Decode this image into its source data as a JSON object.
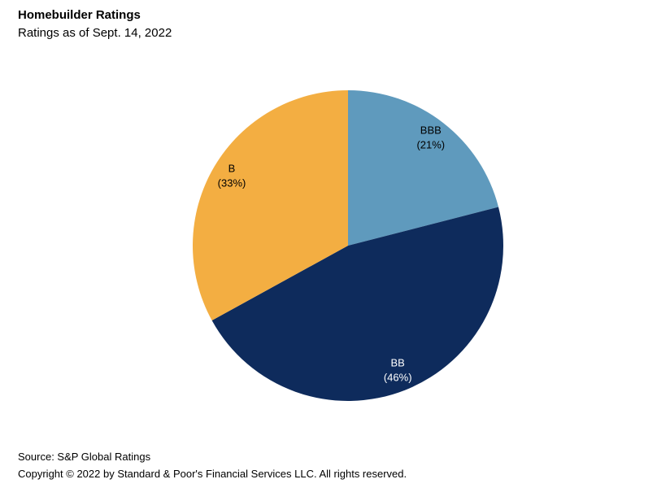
{
  "header": {
    "title": "Homebuilder Ratings",
    "subtitle": "Ratings as of Sept. 14, 2022"
  },
  "footer": {
    "source": "Source: S&P Global Ratings",
    "copyright": "Copyright © 2022 by Standard & Poor's Financial Services LLC. All rights reserved."
  },
  "chart_data": {
    "type": "pie",
    "title": "Homebuilder Ratings",
    "subtitle": "Ratings as of Sept. 14, 2022",
    "start_angle_deg": 0,
    "direction": "clockwise",
    "legend": "none",
    "background_color": "#ffffff",
    "label_radius_ratio": 0.87,
    "slices": [
      {
        "label": "BBB",
        "value_pct": 21,
        "color": "#5f9abd",
        "label_color": "#000000"
      },
      {
        "label": "BB",
        "value_pct": 46,
        "color": "#0e2b5c",
        "label_color": "#ffffff"
      },
      {
        "label": "B",
        "value_pct": 33,
        "color": "#f3ae42",
        "label_color": "#000000"
      }
    ]
  }
}
